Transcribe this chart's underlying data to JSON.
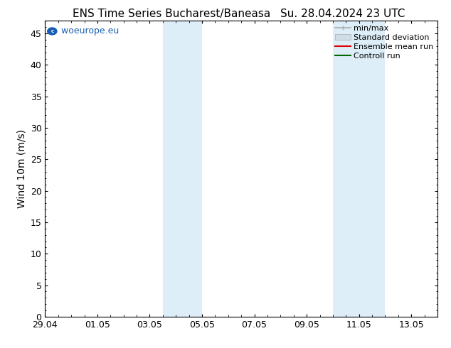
{
  "title": "ENS Time Series Bucharest/Baneasa",
  "title_right": "Su. 28.04.2024 23 UTC",
  "ylabel": "Wind 10m (m/s)",
  "ylim": [
    0,
    47
  ],
  "yticks": [
    0,
    5,
    10,
    15,
    20,
    25,
    30,
    35,
    40,
    45
  ],
  "xlim": [
    0,
    15
  ],
  "xtick_labels": [
    "29.04",
    "01.05",
    "03.05",
    "05.05",
    "07.05",
    "09.05",
    "11.05",
    "13.05"
  ],
  "xtick_positions": [
    0,
    2,
    4,
    6,
    8,
    10,
    12,
    14
  ],
  "shaded_regions": [
    {
      "start": 4.5,
      "end": 6.0
    },
    {
      "start": 11.0,
      "end": 13.0
    }
  ],
  "shaded_color": "#ddeef8",
  "background_color": "#ffffff",
  "plot_bg_color": "#ffffff",
  "watermark_text": "© woeurope.eu",
  "watermark_color": "#1a5fb4",
  "circle_color": "#1a5fb4",
  "legend_items": [
    {
      "label": "min/max",
      "color": "#aaaaaa",
      "type": "minmax"
    },
    {
      "label": "Standard deviation",
      "color": "#d0dce8",
      "type": "fill"
    },
    {
      "label": "Ensemble mean run",
      "color": "#dd0000",
      "type": "line"
    },
    {
      "label": "Controll run",
      "color": "#006600",
      "type": "line"
    }
  ],
  "title_fontsize": 11,
  "ylabel_fontsize": 10,
  "tick_fontsize": 9,
  "legend_fontsize": 8,
  "watermark_fontsize": 9
}
